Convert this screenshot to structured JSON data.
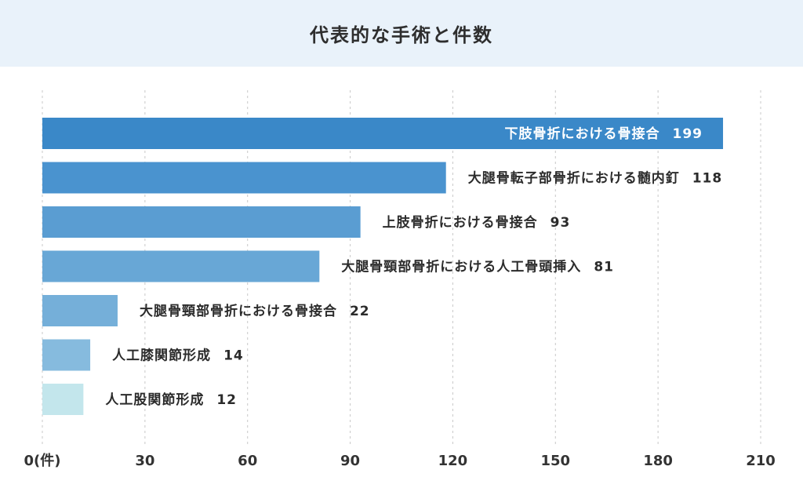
{
  "title": "代表的な手術と件数",
  "colors": {
    "title_bg": "#e9f2fa",
    "grid": "#c8c8c8",
    "bar_colors": [
      "#3a88c8",
      "#4a93cf",
      "#5a9dd2",
      "#68a7d6",
      "#75afd9",
      "#86bbde",
      "#c3e6ec"
    ],
    "label_inside": "#ffffff",
    "label_outside": "#2b2b2b"
  },
  "chart_data": {
    "type": "bar",
    "orientation": "horizontal",
    "categories": [
      "下肢骨折における骨接合",
      "大腿骨転子部骨折における髄内釘",
      "上肢骨折における骨接合",
      "大腿骨頸部骨折における人工骨頭挿入",
      "大腿骨頸部骨折における骨接合",
      "人工膝関節形成",
      "人工股関節形成"
    ],
    "values": [
      199,
      118,
      93,
      81,
      22,
      14,
      12
    ],
    "xlim": [
      0,
      210
    ],
    "xticks": [
      0,
      30,
      60,
      90,
      120,
      150,
      180,
      210
    ],
    "xtick_labels": [
      "0(件)",
      "30",
      "60",
      "90",
      "120",
      "150",
      "180",
      "210"
    ],
    "grid": "vertical dashed",
    "legend": "none"
  }
}
